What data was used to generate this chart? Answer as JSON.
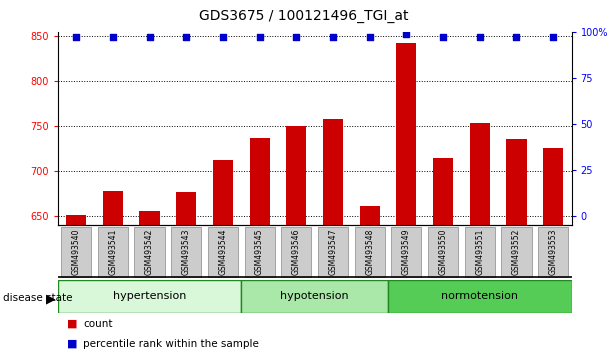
{
  "title": "GDS3675 / 100121496_TGI_at",
  "samples": [
    "GSM493540",
    "GSM493541",
    "GSM493542",
    "GSM493543",
    "GSM493544",
    "GSM493545",
    "GSM493546",
    "GSM493547",
    "GSM493548",
    "GSM493549",
    "GSM493550",
    "GSM493551",
    "GSM493552",
    "GSM493553"
  ],
  "bar_values": [
    651,
    678,
    655,
    676,
    712,
    737,
    750,
    758,
    661,
    843,
    714,
    753,
    736,
    726
  ],
  "percentile_values": [
    97,
    97,
    97,
    97,
    97,
    97,
    97,
    97,
    97,
    99,
    97,
    97,
    97,
    97
  ],
  "bar_color": "#cc0000",
  "dot_color": "#0000cc",
  "ylim_left": [
    640,
    855
  ],
  "ylim_right": [
    -4.7,
    100
  ],
  "yticks_left": [
    650,
    700,
    750,
    800,
    850
  ],
  "yticks_right": [
    0,
    25,
    50,
    75,
    100
  ],
  "yticklabels_right": [
    "0",
    "25",
    "50",
    "75",
    "100%"
  ],
  "groups": [
    {
      "label": "hypertension",
      "start": 0,
      "end": 5
    },
    {
      "label": "hypotension",
      "start": 5,
      "end": 9
    },
    {
      "label": "normotension",
      "start": 9,
      "end": 14
    }
  ],
  "group_colors": [
    "#d9f7d9",
    "#aae8aa",
    "#55cc55"
  ],
  "group_edge_color": "#228822",
  "disease_state_label": "disease state",
  "legend_count_label": "count",
  "legend_percentile_label": "percentile rank within the sample",
  "tick_label_bg": "#cccccc",
  "title_fontsize": 10,
  "axis_tick_fontsize": 7,
  "bar_width": 0.55,
  "label_fontsize": 5.5,
  "group_fontsize": 8
}
